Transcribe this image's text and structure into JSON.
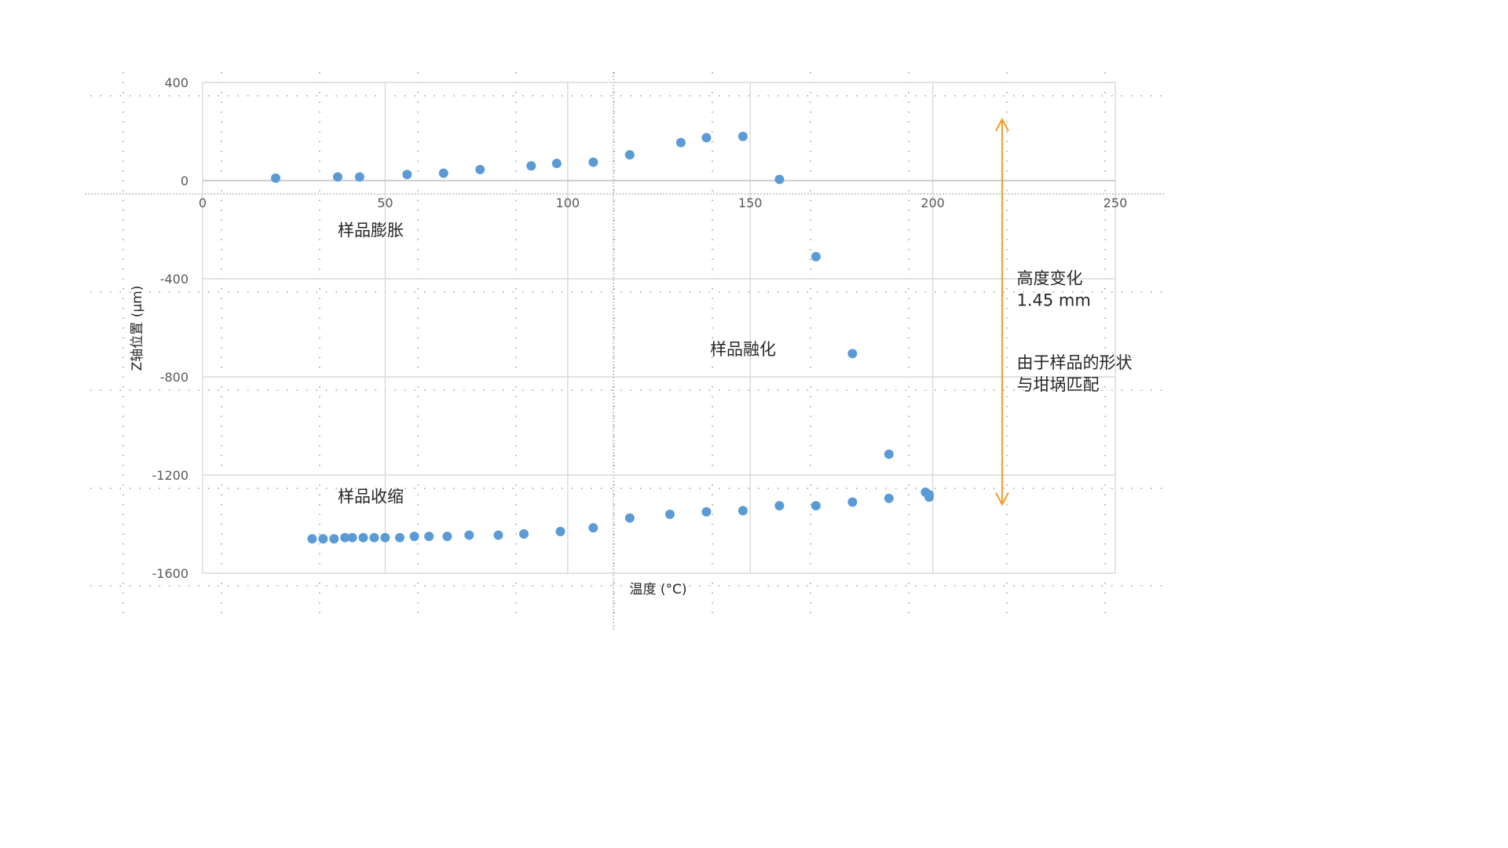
{
  "chart_data": {
    "type": "scatter",
    "xlabel": "温度 (°C)",
    "ylabel": "Z轴位置 (μm)",
    "xlim": [
      0,
      250
    ],
    "ylim": [
      -1600,
      400
    ],
    "x_ticks": [
      0,
      50,
      100,
      150,
      200,
      250
    ],
    "y_ticks": [
      400,
      0,
      -400,
      -800,
      -1200,
      -1600
    ],
    "grid": true,
    "colors": {
      "points": "#5b9bd5",
      "arrow": "#f39c2a",
      "grid": "#d9d9d9"
    },
    "series": [
      {
        "x": [
          20,
          37,
          43,
          56,
          66,
          76,
          90,
          97,
          107,
          117,
          131,
          138,
          148,
          158,
          168,
          178,
          188,
          198,
          199,
          199,
          188,
          178,
          168,
          158,
          148,
          138,
          128,
          117,
          107,
          98,
          88,
          81,
          73,
          67,
          62,
          58,
          54,
          50,
          47,
          44,
          41,
          39,
          36,
          33,
          30
        ],
        "y": [
          10,
          15,
          15,
          25,
          30,
          45,
          60,
          70,
          75,
          105,
          155,
          175,
          180,
          5,
          -310,
          -705,
          -1115,
          -1270,
          -1290,
          -1280,
          -1295,
          -1310,
          -1325,
          -1325,
          -1345,
          -1350,
          -1360,
          -1375,
          -1415,
          -1430,
          -1440,
          -1445,
          -1445,
          -1450,
          -1450,
          -1450,
          -1455,
          -1455,
          -1455,
          -1455,
          -1455,
          -1455,
          -1460,
          -1460,
          -1460
        ]
      }
    ],
    "annotations": [
      {
        "text": "样品膨胀",
        "x": 37,
        "y": -225
      },
      {
        "text": "样品融化",
        "x": 139,
        "y": -710
      },
      {
        "text": "样品收缩",
        "x": 37,
        "y": -1310
      },
      {
        "text": "高度变化",
        "x": 223,
        "y": -420
      },
      {
        "text": "1.45 mm",
        "x": 223,
        "y": -510
      },
      {
        "text": "由于样品的形状",
        "x": 223,
        "y": -765
      },
      {
        "text": "与坩埚匹配",
        "x": 223,
        "y": -855
      }
    ],
    "range_arrow": {
      "x": 219,
      "y_top": 250,
      "y_bottom": -1320
    }
  }
}
